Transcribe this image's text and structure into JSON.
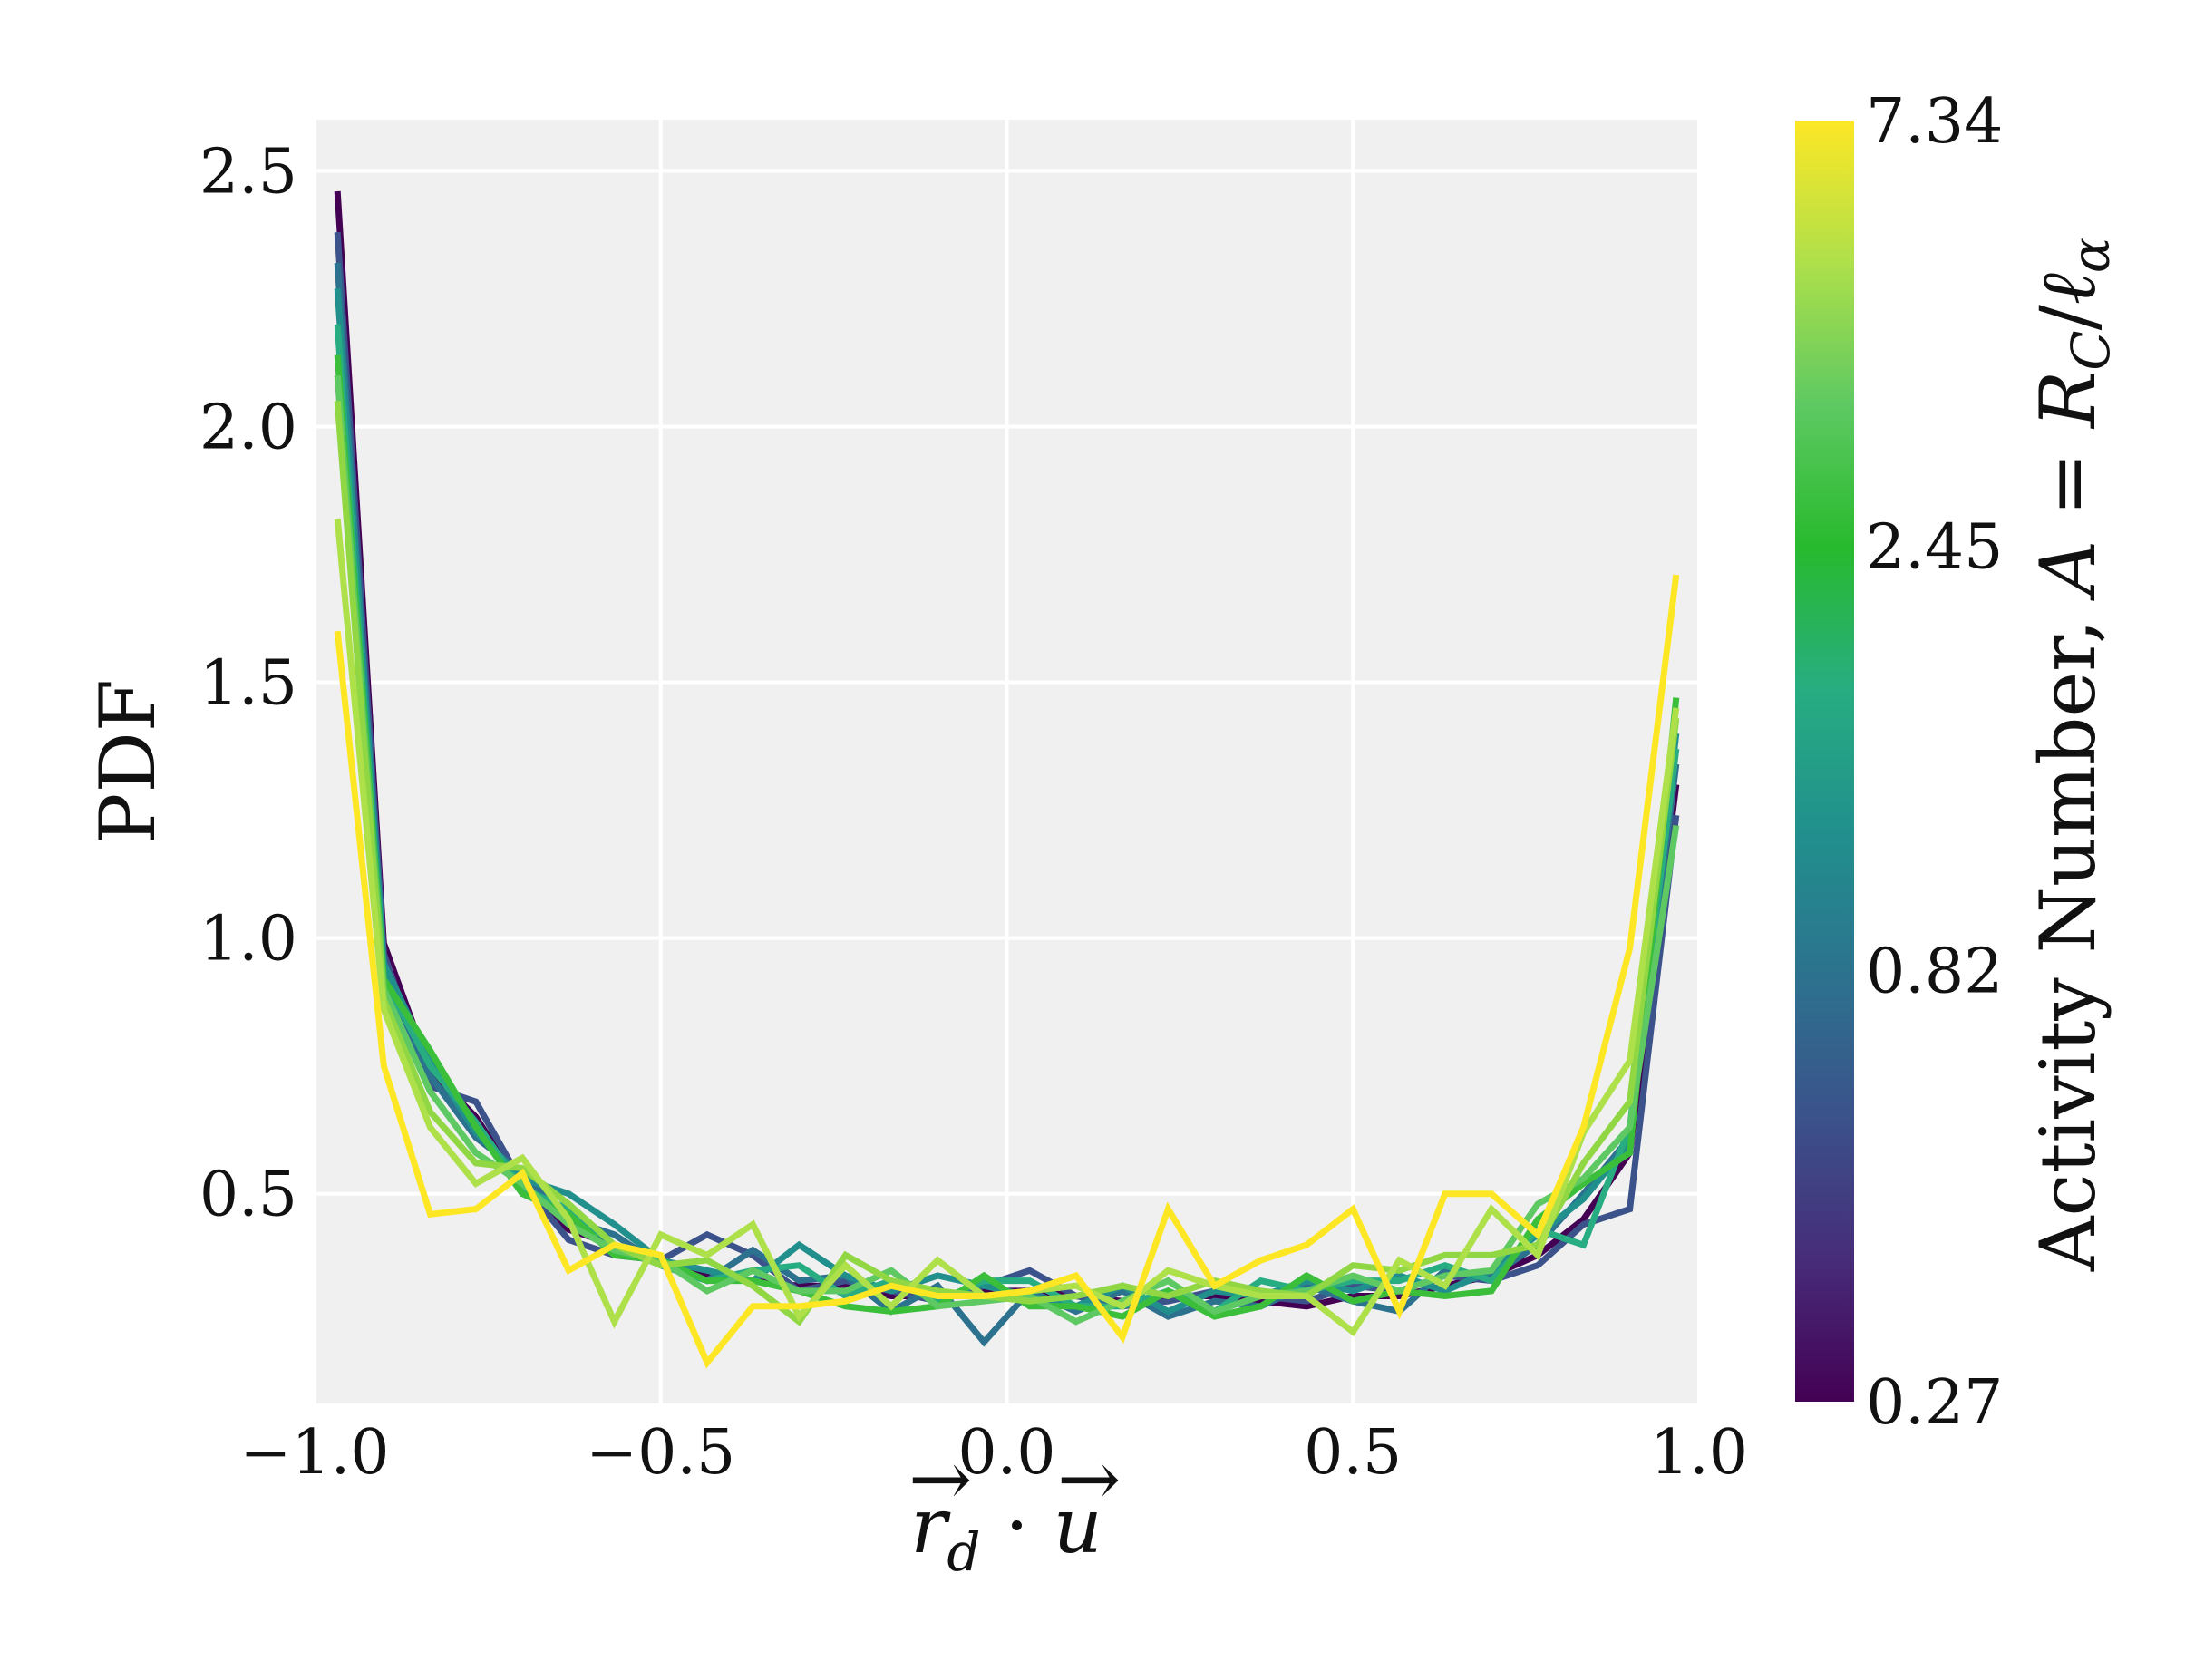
{
  "chart_data": {
    "type": "line",
    "xlabel": "r⃗d · u⃗",
    "ylabel": "PDF",
    "xlim": [
      -1.0,
      1.0
    ],
    "ylim": [
      0.09,
      2.6
    ],
    "x_ticks": [
      -1.0,
      -0.5,
      0.0,
      0.5,
      1.0
    ],
    "x_tick_labels": [
      "−1.0",
      "−0.5",
      "0.0",
      "0.5",
      "1.0"
    ],
    "y_ticks": [
      0.5,
      1.0,
      1.5,
      2.0,
      2.5
    ],
    "y_tick_labels": [
      "0.5",
      "1.0",
      "1.5",
      "2.0",
      "2.5"
    ],
    "grid": true,
    "background_color": "#f0f0f0",
    "x": [
      -0.967,
      -0.9,
      -0.833,
      -0.767,
      -0.7,
      -0.633,
      -0.567,
      -0.5,
      -0.433,
      -0.367,
      -0.3,
      -0.233,
      -0.167,
      -0.1,
      -0.033,
      0.033,
      0.1,
      0.167,
      0.233,
      0.3,
      0.367,
      0.433,
      0.5,
      0.567,
      0.633,
      0.7,
      0.767,
      0.833,
      0.9,
      0.967
    ],
    "series": [
      {
        "color": "#440154",
        "values": [
          2.46,
          0.99,
          0.74,
          0.65,
          0.51,
          0.43,
          0.4,
          0.37,
          0.34,
          0.33,
          0.32,
          0.32,
          0.3,
          0.3,
          0.31,
          0.31,
          0.3,
          0.29,
          0.3,
          0.3,
          0.29,
          0.28,
          0.3,
          0.3,
          0.32,
          0.34,
          0.38,
          0.45,
          0.58,
          1.3
        ]
      },
      {
        "color": "#3b528b",
        "values": [
          2.38,
          0.97,
          0.71,
          0.68,
          0.52,
          0.41,
          0.38,
          0.37,
          0.42,
          0.38,
          0.31,
          0.33,
          0.31,
          0.29,
          0.32,
          0.35,
          0.3,
          0.28,
          0.29,
          0.31,
          0.3,
          0.29,
          0.32,
          0.31,
          0.34,
          0.33,
          0.36,
          0.44,
          0.47,
          1.24
        ]
      },
      {
        "color": "#2c728e",
        "values": [
          2.32,
          0.93,
          0.73,
          0.61,
          0.54,
          0.45,
          0.42,
          0.36,
          0.33,
          0.39,
          0.33,
          0.34,
          0.27,
          0.32,
          0.21,
          0.31,
          0.27,
          0.31,
          0.26,
          0.29,
          0.28,
          0.32,
          0.29,
          0.27,
          0.35,
          0.34,
          0.4,
          0.5,
          0.61,
          1.34
        ]
      },
      {
        "color": "#21908d",
        "values": [
          2.27,
          0.95,
          0.76,
          0.62,
          0.53,
          0.5,
          0.44,
          0.37,
          0.35,
          0.33,
          0.4,
          0.34,
          0.31,
          0.34,
          0.32,
          0.3,
          0.28,
          0.32,
          0.27,
          0.31,
          0.3,
          0.33,
          0.31,
          0.34,
          0.31,
          0.35,
          0.42,
          0.49,
          0.6,
          1.4
        ]
      },
      {
        "color": "#27ad81",
        "values": [
          2.2,
          0.92,
          0.75,
          0.64,
          0.51,
          0.47,
          0.4,
          0.36,
          0.33,
          0.35,
          0.36,
          0.3,
          0.33,
          0.29,
          0.33,
          0.33,
          0.28,
          0.28,
          0.31,
          0.27,
          0.33,
          0.31,
          0.33,
          0.33,
          0.36,
          0.33,
          0.43,
          0.4,
          0.63,
          1.37
        ]
      },
      {
        "color": "#3bbf3b",
        "values": [
          2.14,
          0.92,
          0.78,
          0.63,
          0.5,
          0.46,
          0.38,
          0.37,
          0.33,
          0.33,
          0.31,
          0.28,
          0.27,
          0.28,
          0.34,
          0.28,
          0.28,
          0.26,
          0.31,
          0.26,
          0.28,
          0.34,
          0.29,
          0.31,
          0.3,
          0.31,
          0.45,
          0.52,
          0.58,
          1.47
        ]
      },
      {
        "color": "#5ec962",
        "values": [
          2.1,
          0.9,
          0.7,
          0.58,
          0.52,
          0.44,
          0.39,
          0.37,
          0.31,
          0.35,
          0.31,
          0.31,
          0.35,
          0.28,
          0.29,
          0.3,
          0.25,
          0.29,
          0.33,
          0.27,
          0.3,
          0.31,
          0.34,
          0.31,
          0.34,
          0.35,
          0.48,
          0.53,
          0.63,
          1.22
        ]
      },
      {
        "color": "#90d743",
        "values": [
          2.05,
          0.88,
          0.66,
          0.56,
          0.55,
          0.48,
          0.4,
          0.36,
          0.37,
          0.32,
          0.25,
          0.38,
          0.33,
          0.31,
          0.3,
          0.29,
          0.3,
          0.32,
          0.3,
          0.33,
          0.31,
          0.3,
          0.36,
          0.35,
          0.38,
          0.38,
          0.4,
          0.56,
          0.68,
          1.43
        ]
      },
      {
        "color": "#aee04a",
        "values": [
          1.82,
          0.86,
          0.63,
          0.52,
          0.57,
          0.45,
          0.25,
          0.42,
          0.38,
          0.44,
          0.26,
          0.36,
          0.28,
          0.37,
          0.3,
          0.31,
          0.32,
          0.28,
          0.35,
          0.32,
          0.3,
          0.3,
          0.23,
          0.37,
          0.32,
          0.47,
          0.38,
          0.62,
          0.76,
          1.45
        ]
      },
      {
        "color": "#fde725",
        "values": [
          1.6,
          0.75,
          0.46,
          0.47,
          0.54,
          0.35,
          0.4,
          0.38,
          0.17,
          0.28,
          0.28,
          0.29,
          0.32,
          0.3,
          0.3,
          0.31,
          0.34,
          0.22,
          0.47,
          0.32,
          0.37,
          0.4,
          0.47,
          0.27,
          0.5,
          0.5,
          0.42,
          0.63,
          0.98,
          1.71
        ]
      }
    ],
    "colorbar": {
      "label": "Activity Number, A = R_C/ℓ_α",
      "scale": "log",
      "min": 0.27,
      "max": 7.34,
      "tick_labels": [
        "0.27",
        "0.82",
        "2.45",
        "7.34"
      ],
      "colormap_stops": [
        "#440154",
        "#472c7a",
        "#3b528b",
        "#2c728e",
        "#21908d",
        "#27ad81",
        "#28ba2e",
        "#5ec962",
        "#aee04a",
        "#fde725"
      ]
    }
  }
}
